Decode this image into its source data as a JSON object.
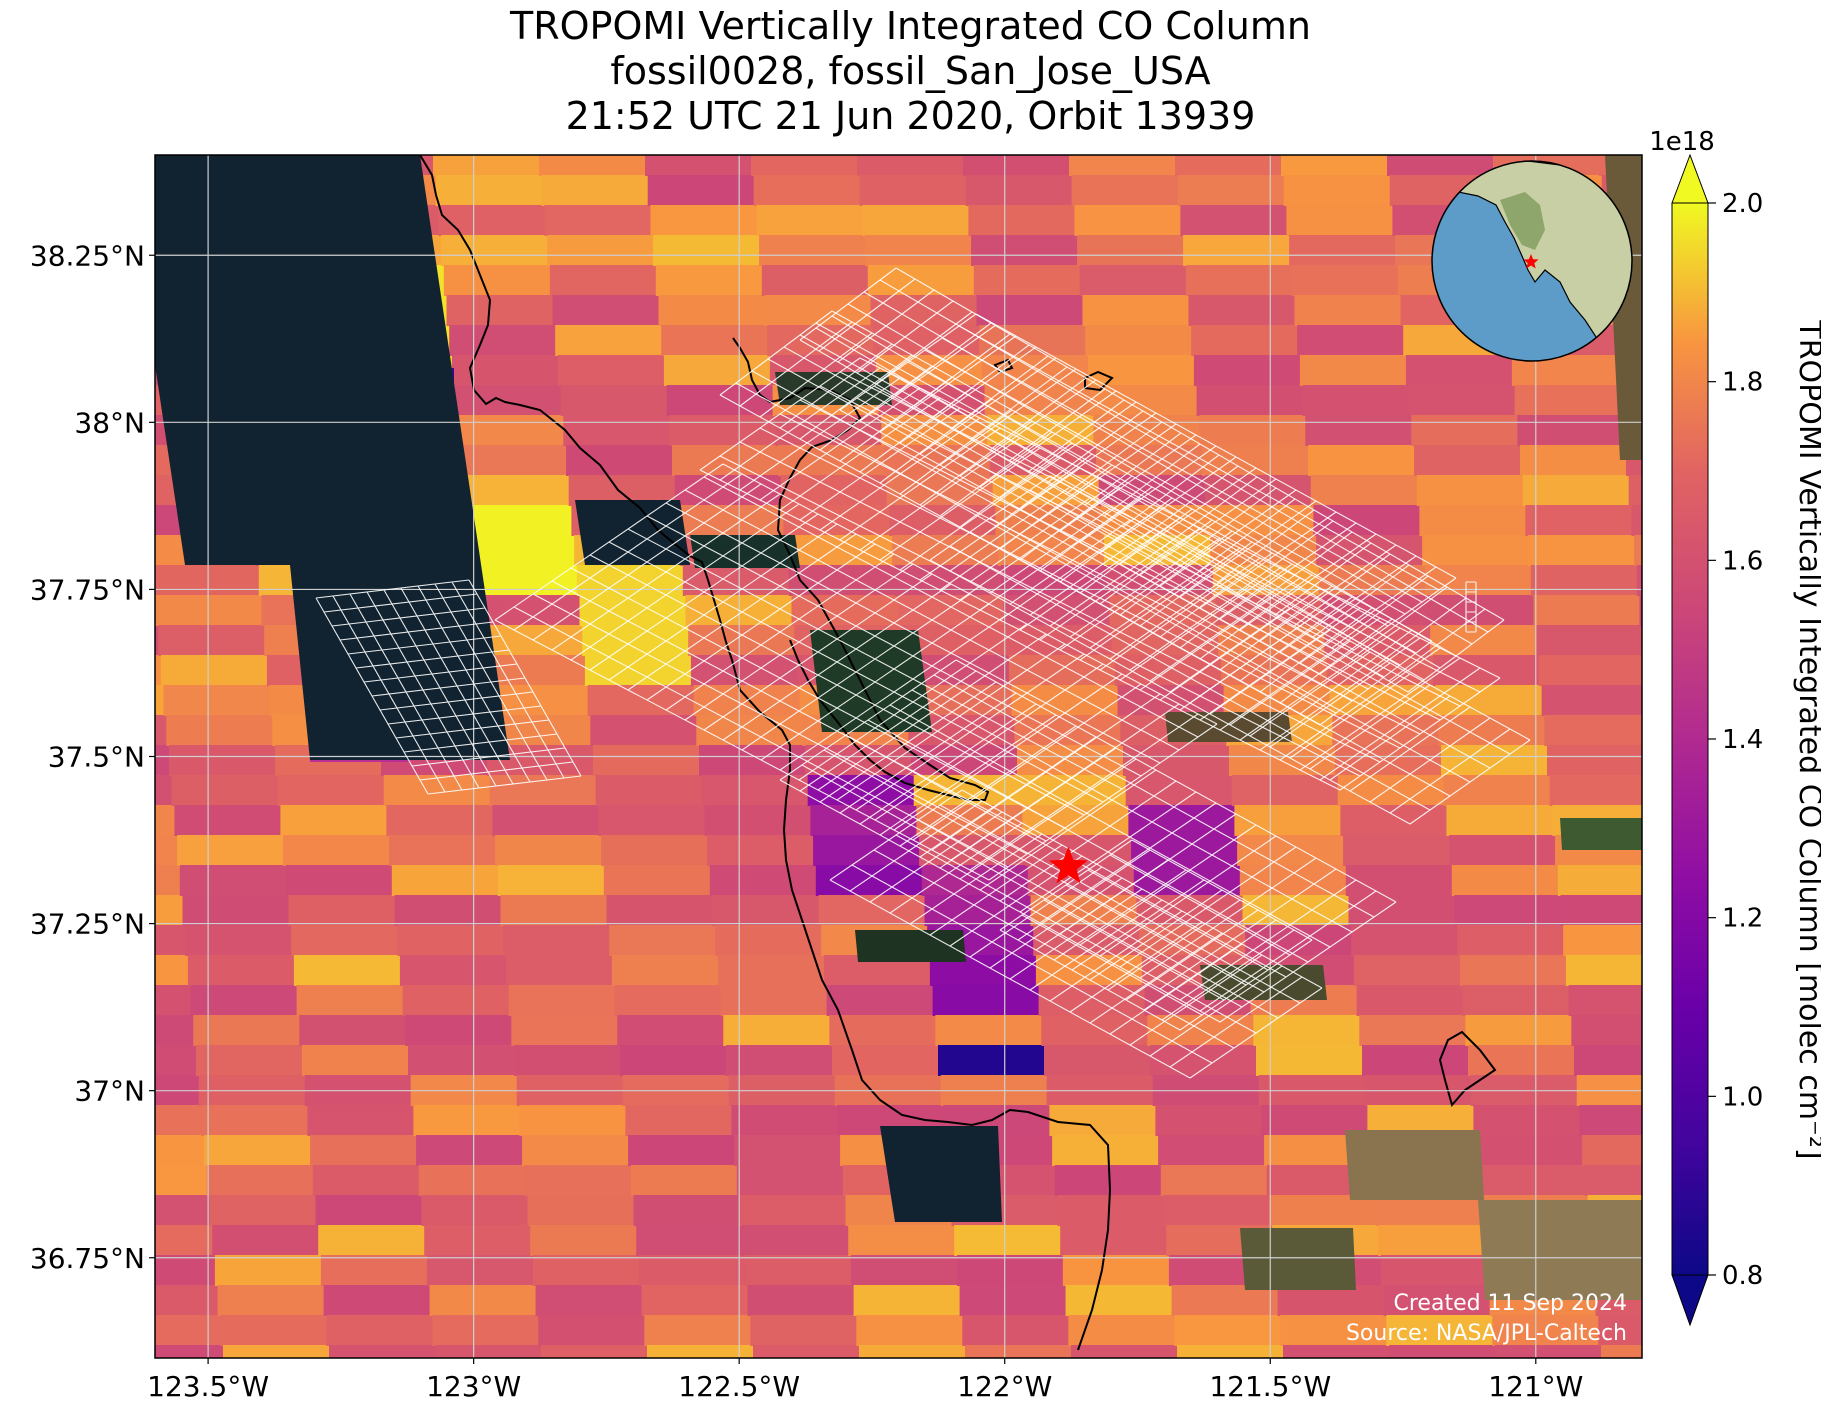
{
  "title": {
    "line1": "TROPOMI Vertically Integrated CO Column",
    "line2": "fossil0028, fossil_San_Jose_USA",
    "line3": "21:52 UTC 21 Jun 2020, Orbit 13939"
  },
  "map": {
    "lon_range": [
      -123.6,
      -120.8
    ],
    "lat_range": [
      36.6,
      38.4
    ],
    "x_ticks": [
      {
        "value": -123.5,
        "label": "123.5°W"
      },
      {
        "value": -123.0,
        "label": "123°W"
      },
      {
        "value": -122.5,
        "label": "122.5°W"
      },
      {
        "value": -122.0,
        "label": "122°W"
      },
      {
        "value": -121.5,
        "label": "121.5°W"
      },
      {
        "value": -121.0,
        "label": "121°W"
      }
    ],
    "y_ticks": [
      {
        "value": 38.25,
        "label": "38.25°N"
      },
      {
        "value": 38.0,
        "label": "38°N"
      },
      {
        "value": 37.75,
        "label": "37.75°N"
      },
      {
        "value": 37.5,
        "label": "37.5°N"
      },
      {
        "value": 37.25,
        "label": "37.25°N"
      },
      {
        "value": 37.0,
        "label": "37°N"
      },
      {
        "value": 36.75,
        "label": "36.75°N"
      }
    ],
    "grid": true,
    "target_marker": {
      "name": "San Jose",
      "lon": -121.88,
      "lat": 37.335,
      "color": "#ff0000",
      "shape": "star-icon"
    },
    "background_colors": {
      "ocean": "#112330",
      "land": "#4d5a2e"
    },
    "inset_globe": {
      "placement": "top-right",
      "ocean": "#5d9bc9",
      "land": "#c9cfa4",
      "marker": "star-icon"
    }
  },
  "colorbar": {
    "label": "TROPOMI Vertically Integrated CO Column [molec cm⁻²]",
    "scale_label": "1e18",
    "range": [
      0.8,
      2.0
    ],
    "extend": "both",
    "colormap": "plasma",
    "ticks": [
      {
        "value": 0.8,
        "label": "0.8"
      },
      {
        "value": 1.0,
        "label": "1.0"
      },
      {
        "value": 1.2,
        "label": "1.2"
      },
      {
        "value": 1.4,
        "label": "1.4"
      },
      {
        "value": 1.6,
        "label": "1.6"
      },
      {
        "value": 1.8,
        "label": "1.8"
      },
      {
        "value": 2.0,
        "label": "2.0"
      }
    ]
  },
  "credits": {
    "created": "Created 11 Sep 2024",
    "source": "Source: NASA/JPL-Caltech"
  }
}
